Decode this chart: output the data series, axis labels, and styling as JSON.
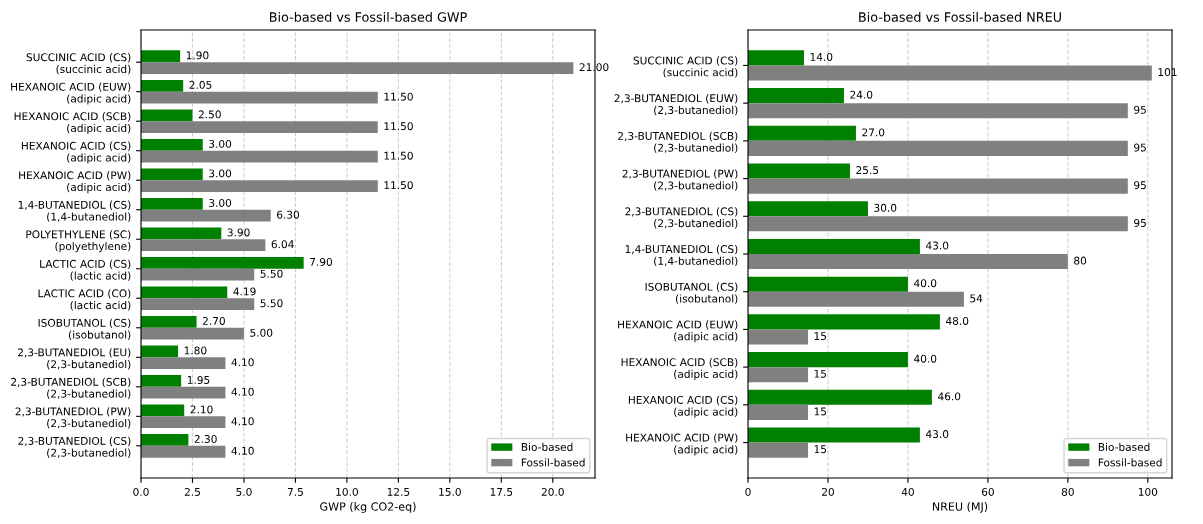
{
  "chart_data": [
    {
      "type": "bar",
      "orientation": "horizontal",
      "title": "Bio-based vs Fossil-based GWP",
      "xlabel": "GWP (kg CO2-eq)",
      "categories": [
        "SUCCINIC ACID (CS)\n(succinic acid)",
        "HEXANOIC ACID (EUW)\n(adipic acid)",
        "HEXANOIC ACID (SCB)\n(adipic acid)",
        "HEXANOIC ACID (CS)\n(adipic acid)",
        "HEXANOIC ACID (PW)\n(adipic acid)",
        "1,4-BUTANEDIOL (CS)\n(1,4-butanediol)",
        "POLYETHYLENE (SC)\n(polyethylene)",
        "LACTIC ACID (CS)\n(lactic acid)",
        "LACTIC ACID (CO)\n(lactic acid)",
        "ISOBUTANOL (CS)\n(isobutanol)",
        "2,3-BUTANEDIOL (EU)\n(2,3-butanediol)",
        "2,3-BUTANEDIOL (SCB)\n(2,3-butanediol)",
        "2,3-BUTANEDIOL (PW)\n(2,3-butanediol)",
        "2,3-BUTANEDIOL (CS)\n(2,3-butanediol)"
      ],
      "series": [
        {
          "name": "Bio-based",
          "color": "#008000",
          "values": [
            1.9,
            2.05,
            2.5,
            3.0,
            3.0,
            3.0,
            3.9,
            7.9,
            4.19,
            2.7,
            1.8,
            1.95,
            2.1,
            2.3
          ],
          "value_labels": [
            "1.90",
            "2.05",
            "2.50",
            "3.00",
            "3.00",
            "3.00",
            "3.90",
            "7.90",
            "4.19",
            "2.70",
            "1.80",
            "1.95",
            "2.10",
            "2.30"
          ]
        },
        {
          "name": "Fossil-based",
          "color": "#808080",
          "values": [
            21.0,
            11.5,
            11.5,
            11.5,
            11.5,
            6.3,
            6.04,
            5.5,
            5.5,
            5.0,
            4.1,
            4.1,
            4.1,
            4.1
          ],
          "value_labels": [
            "21.00",
            "11.50",
            "11.50",
            "11.50",
            "11.50",
            "6.30",
            "6.04",
            "5.50",
            "5.50",
            "5.00",
            "4.10",
            "4.10",
            "4.10",
            "4.10"
          ]
        }
      ],
      "xlim": [
        0,
        22.05
      ],
      "xticks": [
        {
          "value": 0,
          "label": "0.0"
        },
        {
          "value": 2.5,
          "label": "2.5"
        },
        {
          "value": 5,
          "label": "5.0"
        },
        {
          "value": 7.5,
          "label": "7.5"
        },
        {
          "value": 10,
          "label": "10.0"
        },
        {
          "value": 12.5,
          "label": "12.5"
        },
        {
          "value": 15,
          "label": "15.0"
        },
        {
          "value": 17.5,
          "label": "17.5"
        },
        {
          "value": 20,
          "label": "20.0"
        }
      ],
      "grid": "x",
      "legend": "bottom right"
    },
    {
      "type": "bar",
      "orientation": "horizontal",
      "title": "Bio-based vs Fossil-based NREU",
      "xlabel": "NREU (MJ)",
      "categories": [
        "SUCCINIC ACID (CS)\n(succinic acid)",
        "2,3-BUTANEDIOL (EUW)\n(2,3-butanediol)",
        "2,3-BUTANEDIOL (SCB)\n(2,3-butanediol)",
        "2,3-BUTANEDIOL (PW)\n(2,3-butanediol)",
        "2,3-BUTANEDIOL (CS)\n(2,3-butanediol)",
        "1,4-BUTANEDIOL (CS)\n(1,4-butanediol)",
        "ISOBUTANOL (CS)\n(isobutanol)",
        "HEXANOIC ACID (EUW)\n(adipic acid)",
        "HEXANOIC ACID (SCB)\n(adipic acid)",
        "HEXANOIC ACID (CS)\n(adipic acid)",
        "HEXANOIC ACID (PW)\n(adipic acid)"
      ],
      "series": [
        {
          "name": "Bio-based",
          "color": "#008000",
          "values": [
            14.0,
            24.0,
            27.0,
            25.5,
            30.0,
            43.0,
            40.0,
            48.0,
            40.0,
            46.0,
            43.0
          ],
          "value_labels": [
            "14.0",
            "24.0",
            "27.0",
            "25.5",
            "30.0",
            "43.0",
            "40.0",
            "48.0",
            "40.0",
            "46.0",
            "43.0"
          ]
        },
        {
          "name": "Fossil-based",
          "color": "#808080",
          "values": [
            101,
            95,
            95,
            95,
            95,
            80,
            54,
            15,
            15,
            15,
            15
          ],
          "value_labels": [
            "101",
            "95",
            "95",
            "95",
            "95",
            "80",
            "54",
            "15",
            "15",
            "15",
            "15"
          ]
        }
      ],
      "xlim": [
        0,
        106.05
      ],
      "xticks": [
        0,
        20,
        40,
        60,
        80,
        100
      ],
      "grid": "x",
      "legend": "bottom right"
    }
  ]
}
